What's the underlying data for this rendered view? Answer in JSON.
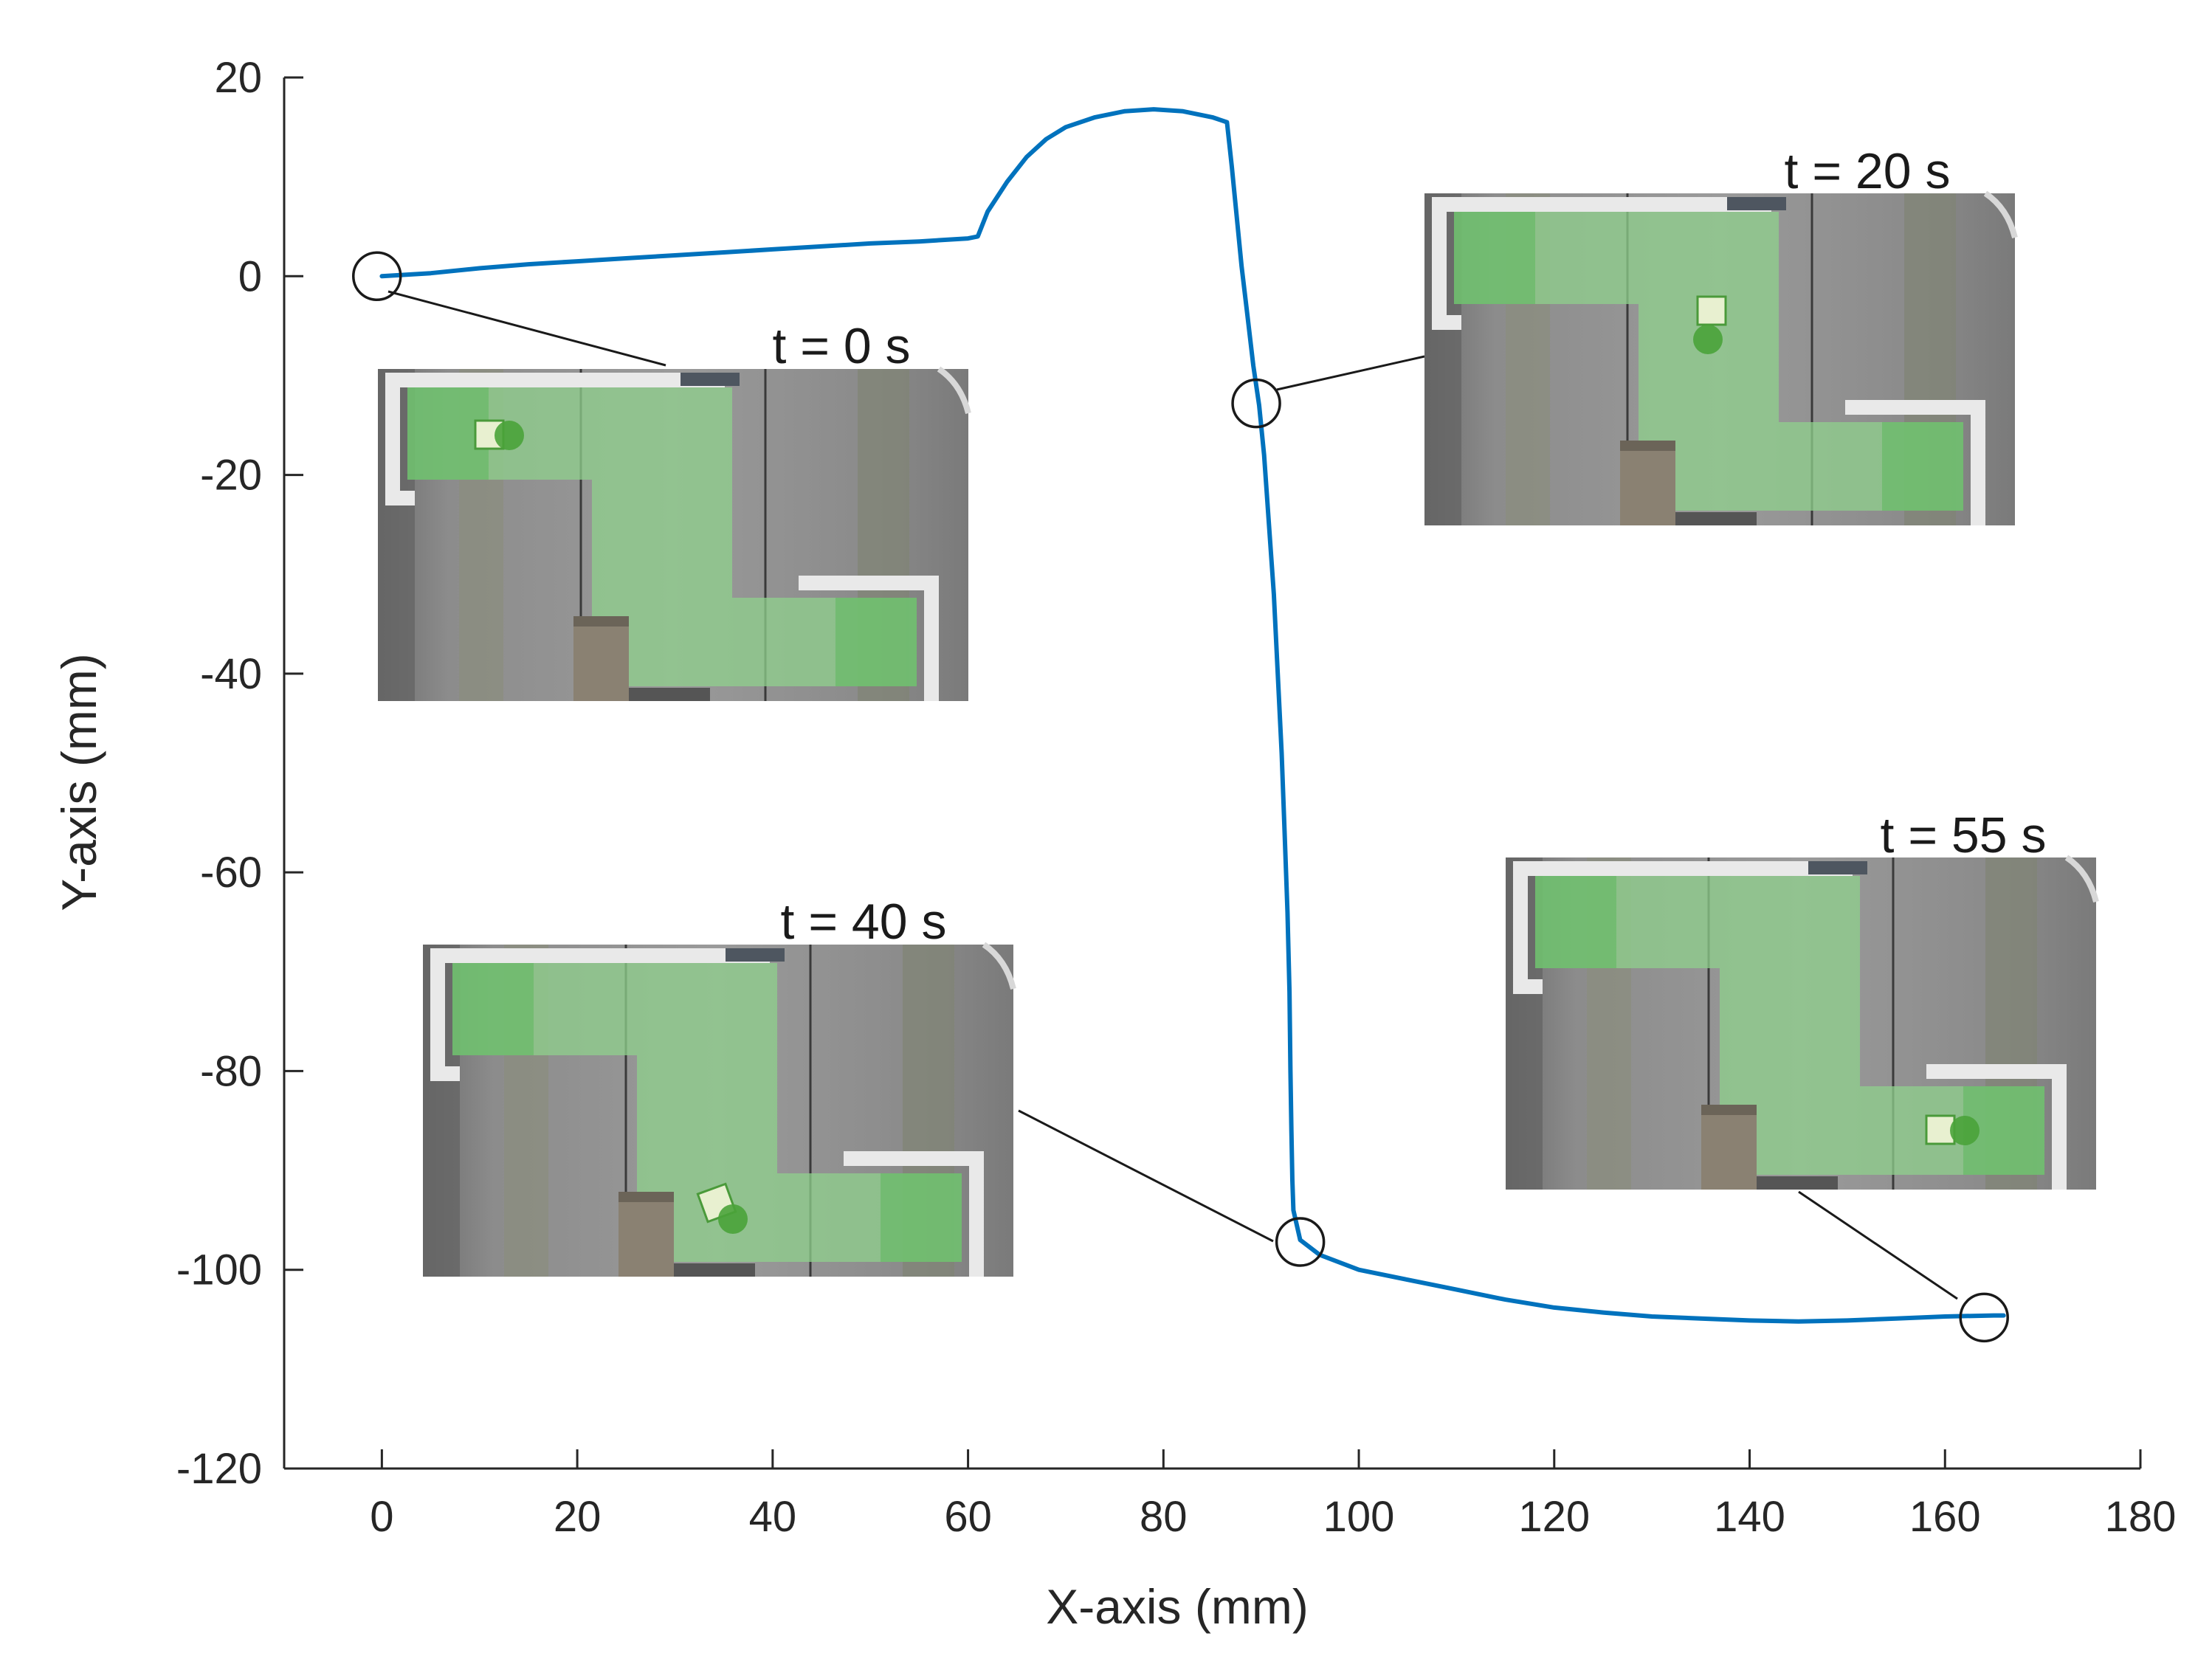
{
  "chart_data": {
    "type": "line",
    "title": "",
    "xlabel": "X-axis (mm)",
    "ylabel": "Y-axis (mm)",
    "xlim": [
      -10,
      180
    ],
    "ylim": [
      -120,
      20
    ],
    "xticks": [
      0,
      20,
      40,
      60,
      80,
      100,
      120,
      140,
      160,
      180
    ],
    "yticks": [
      20,
      0,
      -20,
      -40,
      -60,
      -80,
      -100,
      -120
    ],
    "grid": false,
    "legend": "none",
    "series": [
      {
        "color": "#0072BD",
        "points": [
          [
            0,
            0
          ],
          [
            5,
            0.3
          ],
          [
            10,
            0.8
          ],
          [
            15,
            1.2
          ],
          [
            20,
            1.5
          ],
          [
            25,
            1.8
          ],
          [
            30,
            2.1
          ],
          [
            35,
            2.4
          ],
          [
            40,
            2.7
          ],
          [
            45,
            3.0
          ],
          [
            50,
            3.3
          ],
          [
            55,
            3.5
          ],
          [
            60,
            3.8
          ],
          [
            61,
            4.0
          ],
          [
            62,
            6.5
          ],
          [
            64,
            9.5
          ],
          [
            66,
            12.0
          ],
          [
            68,
            13.8
          ],
          [
            70,
            15.0
          ],
          [
            73,
            16.0
          ],
          [
            76,
            16.6
          ],
          [
            79,
            16.8
          ],
          [
            82,
            16.6
          ],
          [
            85,
            16.0
          ],
          [
            86.5,
            15.5
          ],
          [
            87,
            11.0
          ],
          [
            87.5,
            6.0
          ],
          [
            88,
            1.0
          ],
          [
            88.6,
            -4.0
          ],
          [
            89.2,
            -9.0
          ],
          [
            89.8,
            -13.0
          ],
          [
            90.3,
            -18.0
          ],
          [
            90.8,
            -25.0
          ],
          [
            91.3,
            -32.0
          ],
          [
            91.7,
            -40.0
          ],
          [
            92.1,
            -48.0
          ],
          [
            92.4,
            -56.0
          ],
          [
            92.7,
            -64.0
          ],
          [
            92.9,
            -72.0
          ],
          [
            93.0,
            -80.0
          ],
          [
            93.1,
            -86.0
          ],
          [
            93.2,
            -91.0
          ],
          [
            93.3,
            -94.0
          ],
          [
            94,
            -97.0
          ],
          [
            96,
            -98.5
          ],
          [
            100,
            -100.0
          ],
          [
            105,
            -101.0
          ],
          [
            110,
            -102.0
          ],
          [
            115,
            -103.0
          ],
          [
            120,
            -103.8
          ],
          [
            125,
            -104.3
          ],
          [
            130,
            -104.7
          ],
          [
            135,
            -104.9
          ],
          [
            140,
            -105.1
          ],
          [
            145,
            -105.2
          ],
          [
            150,
            -105.1
          ],
          [
            155,
            -104.9
          ],
          [
            160,
            -104.7
          ],
          [
            165,
            -104.6
          ],
          [
            166,
            -104.6
          ]
        ]
      }
    ],
    "markers": [
      {
        "x": -0.5,
        "y": 0,
        "label": "t = 0 s"
      },
      {
        "x": 89.5,
        "y": -12.8,
        "label": "t = 20 s"
      },
      {
        "x": 94,
        "y": -97.2,
        "label": "t = 40 s"
      },
      {
        "x": 164,
        "y": -104.8,
        "label": "t = 55 s"
      }
    ]
  }
}
